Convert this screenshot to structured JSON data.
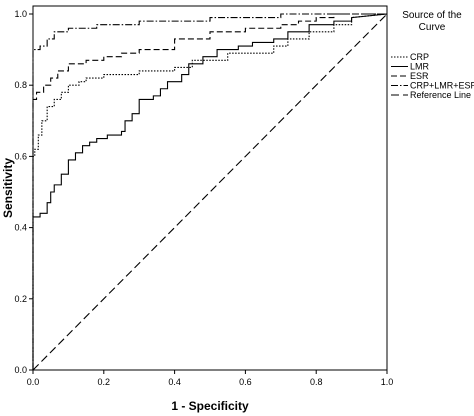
{
  "chart_data": {
    "type": "line",
    "xlabel": "1 - Specificity",
    "ylabel": "Sensitivity",
    "xlim": [
      0,
      1
    ],
    "ylim": [
      0,
      1
    ],
    "xticks": [
      "0.0",
      "0.2",
      "0.4",
      "0.6",
      "0.8",
      "1.0"
    ],
    "yticks": [
      "0.0",
      "0.2",
      "0.4",
      "0.6",
      "0.8",
      "1.0"
    ],
    "grid": false,
    "legend": {
      "title": "Source of the Curve",
      "placement": "right",
      "entries": [
        "CRP",
        "LMR",
        "ESR",
        "CRP+LMR+ESR",
        "Reference Line"
      ]
    },
    "series": [
      {
        "name": "CRP",
        "dash": "dotted",
        "color": "#000000",
        "x": [
          0,
          0,
          0.005,
          0.005,
          0.015,
          0.015,
          0.025,
          0.025,
          0.04,
          0.04,
          0.06,
          0.06,
          0.08,
          0.08,
          0.1,
          0.1,
          0.13,
          0.13,
          0.15,
          0.15,
          0.2,
          0.2,
          0.3,
          0.3,
          0.4,
          0.4,
          0.45,
          0.45,
          0.55,
          0.55,
          0.68,
          0.68,
          0.72,
          0.72,
          0.78,
          0.78,
          0.85,
          0.85,
          0.9,
          0.9,
          1
        ],
        "y": [
          0,
          0.6,
          0.6,
          0.62,
          0.62,
          0.66,
          0.66,
          0.7,
          0.7,
          0.74,
          0.74,
          0.76,
          0.76,
          0.78,
          0.78,
          0.8,
          0.8,
          0.81,
          0.81,
          0.82,
          0.82,
          0.83,
          0.83,
          0.84,
          0.84,
          0.85,
          0.85,
          0.87,
          0.87,
          0.89,
          0.89,
          0.91,
          0.91,
          0.93,
          0.93,
          0.95,
          0.95,
          0.97,
          0.97,
          0.99,
          1
        ]
      },
      {
        "name": "LMR",
        "dash": "solid",
        "color": "#000000",
        "x": [
          0,
          0,
          0.02,
          0.02,
          0.04,
          0.04,
          0.05,
          0.05,
          0.06,
          0.06,
          0.08,
          0.08,
          0.1,
          0.1,
          0.12,
          0.12,
          0.14,
          0.14,
          0.16,
          0.16,
          0.18,
          0.18,
          0.21,
          0.21,
          0.25,
          0.25,
          0.26,
          0.26,
          0.28,
          0.28,
          0.3,
          0.3,
          0.34,
          0.34,
          0.36,
          0.36,
          0.38,
          0.38,
          0.42,
          0.42,
          0.44,
          0.44,
          0.48,
          0.48,
          0.52,
          0.52,
          0.58,
          0.58,
          0.62,
          0.62,
          0.68,
          0.68,
          0.72,
          0.72,
          0.78,
          0.78,
          0.85,
          0.85,
          0.9,
          0.9,
          1
        ],
        "y": [
          0,
          0.43,
          0.43,
          0.44,
          0.44,
          0.47,
          0.47,
          0.5,
          0.5,
          0.52,
          0.52,
          0.55,
          0.55,
          0.59,
          0.59,
          0.61,
          0.61,
          0.63,
          0.63,
          0.64,
          0.64,
          0.65,
          0.65,
          0.66,
          0.66,
          0.67,
          0.67,
          0.7,
          0.7,
          0.72,
          0.72,
          0.76,
          0.76,
          0.77,
          0.77,
          0.79,
          0.79,
          0.81,
          0.81,
          0.83,
          0.83,
          0.86,
          0.86,
          0.88,
          0.88,
          0.9,
          0.9,
          0.91,
          0.91,
          0.92,
          0.92,
          0.93,
          0.93,
          0.95,
          0.95,
          0.97,
          0.97,
          0.98,
          0.98,
          0.99,
          1
        ]
      },
      {
        "name": "ESR",
        "dash": "dashed",
        "color": "#000000",
        "x": [
          0,
          0,
          0.01,
          0.01,
          0.03,
          0.03,
          0.05,
          0.05,
          0.07,
          0.07,
          0.1,
          0.1,
          0.15,
          0.15,
          0.2,
          0.2,
          0.25,
          0.25,
          0.3,
          0.3,
          0.4,
          0.4,
          0.5,
          0.5,
          0.6,
          0.6,
          0.7,
          0.7,
          0.75,
          0.75,
          0.8,
          0.8,
          0.85,
          0.85,
          0.9,
          0.9,
          1
        ],
        "y": [
          0,
          0.76,
          0.76,
          0.78,
          0.78,
          0.8,
          0.8,
          0.82,
          0.82,
          0.84,
          0.84,
          0.86,
          0.86,
          0.87,
          0.87,
          0.88,
          0.88,
          0.89,
          0.89,
          0.9,
          0.9,
          0.93,
          0.93,
          0.95,
          0.95,
          0.96,
          0.96,
          0.97,
          0.97,
          0.98,
          0.98,
          0.99,
          0.99,
          1,
          1,
          1,
          1
        ]
      },
      {
        "name": "CRP+LMR+ESR",
        "dash": "dashdot",
        "color": "#000000",
        "x": [
          0,
          0,
          0.02,
          0.02,
          0.04,
          0.04,
          0.06,
          0.06,
          0.1,
          0.1,
          0.18,
          0.18,
          0.3,
          0.3,
          0.5,
          0.5,
          0.7,
          0.7,
          0.9,
          0.9,
          1
        ],
        "y": [
          0,
          0.9,
          0.9,
          0.91,
          0.91,
          0.93,
          0.93,
          0.95,
          0.95,
          0.96,
          0.96,
          0.97,
          0.97,
          0.98,
          0.98,
          0.99,
          0.99,
          1,
          1,
          1,
          1
        ]
      },
      {
        "name": "Reference Line",
        "dash": "longdash",
        "color": "#000000",
        "x": [
          0,
          1
        ],
        "y": [
          0,
          1
        ]
      }
    ]
  }
}
